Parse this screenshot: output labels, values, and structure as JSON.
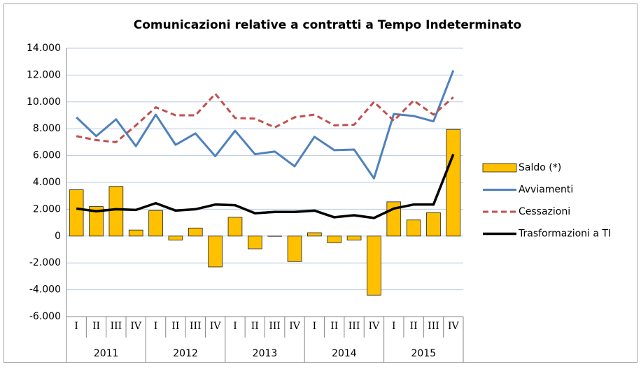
{
  "chart_data": {
    "type": "combo",
    "title": "Comunicazioni relative a contratti a Tempo Indeterminato",
    "categories": [
      "I",
      "II",
      "III",
      "IV",
      "I",
      "II",
      "III",
      "IV",
      "I",
      "II",
      "III",
      "IV",
      "I",
      "II",
      "III",
      "IV",
      "I",
      "II",
      "III",
      "IV"
    ],
    "groups": [
      "2011",
      "2012",
      "2013",
      "2014",
      "2015"
    ],
    "series": [
      {
        "name": "Saldo (*)",
        "type": "bar",
        "color": "#ffc000",
        "values": [
          3450,
          2200,
          3700,
          450,
          1900,
          -300,
          600,
          -2300,
          1400,
          -950,
          -20,
          -1900,
          250,
          -500,
          -300,
          -4400,
          2550,
          1200,
          1750,
          7950
        ]
      },
      {
        "name": "Avviamenti",
        "type": "line",
        "line_style": "solid",
        "color": "#4f81bd",
        "values": [
          8850,
          7450,
          8700,
          6700,
          9050,
          6800,
          7650,
          5950,
          7850,
          6100,
          6300,
          5200,
          7400,
          6400,
          6450,
          4300,
          9100,
          8950,
          8550,
          12350
        ]
      },
      {
        "name": "Cessazioni",
        "type": "line",
        "line_style": "dashed",
        "color": "#c0504d",
        "values": [
          7450,
          7150,
          7000,
          8250,
          9600,
          9000,
          9000,
          10600,
          8800,
          8750,
          8100,
          8850,
          9050,
          8250,
          8300,
          10000,
          8600,
          10100,
          9050,
          10350
        ]
      },
      {
        "name": "Trasformazioni a TI",
        "type": "line",
        "line_style": "thick",
        "color": "#000000",
        "values": [
          2050,
          1850,
          2000,
          1950,
          2450,
          1900,
          2000,
          2350,
          2300,
          1700,
          1800,
          1800,
          1900,
          1400,
          1550,
          1350,
          2050,
          2350,
          2350,
          6100
        ]
      }
    ],
    "ylim": [
      -6000,
      14000
    ],
    "yticks": [
      {
        "value": -6000,
        "label": "-6.000"
      },
      {
        "value": -4000,
        "label": "-4.000"
      },
      {
        "value": -2000,
        "label": "-2.000"
      },
      0,
      {
        "value": 2000,
        "label": "2.000"
      },
      {
        "value": 4000,
        "label": "4.000"
      },
      {
        "value": 6000,
        "label": "6.000"
      },
      {
        "value": 8000,
        "label": "8.000"
      },
      {
        "value": 10000,
        "label": "10.000"
      },
      {
        "value": 12000,
        "label": "12.000"
      },
      {
        "value": 14000,
        "label": "14.000"
      }
    ],
    "grid": true,
    "legend": "right"
  }
}
